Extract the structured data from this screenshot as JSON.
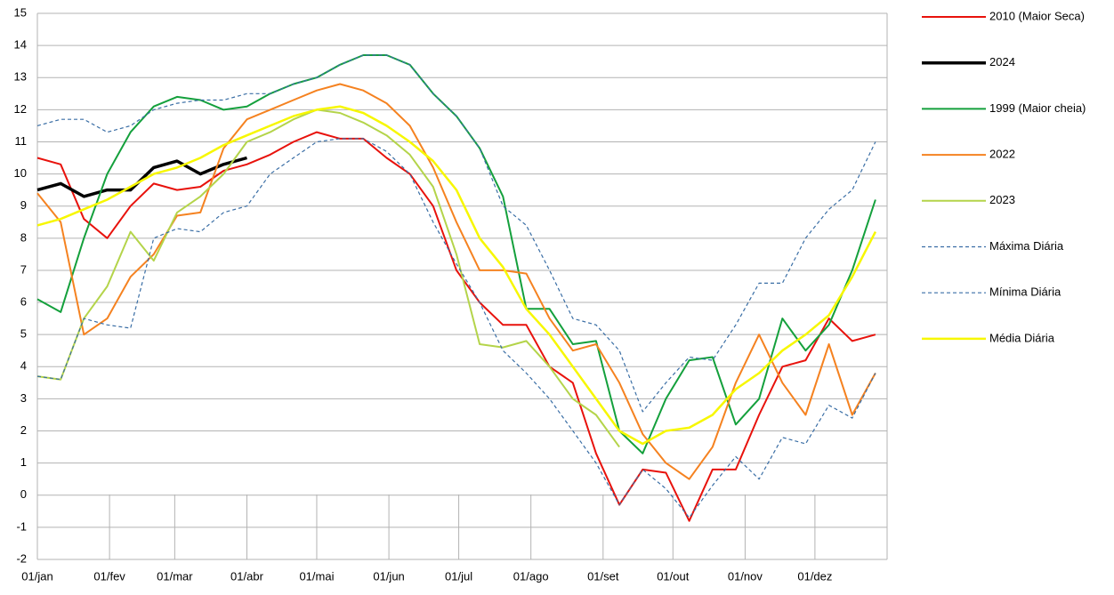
{
  "chart_data": {
    "type": "line",
    "x": [
      0,
      10,
      20,
      30,
      40,
      50,
      60,
      70,
      80,
      90,
      100,
      110,
      120,
      130,
      140,
      150,
      160,
      170,
      180,
      190,
      200,
      210,
      220,
      230,
      240,
      250,
      260,
      270,
      280,
      290,
      300,
      310,
      320,
      330,
      340,
      350,
      360
    ],
    "xlim": [
      0,
      365
    ],
    "xticks": [
      {
        "value": 0,
        "label": "01/jan"
      },
      {
        "value": 31,
        "label": "01/fev"
      },
      {
        "value": 59,
        "label": "01/mar"
      },
      {
        "value": 90,
        "label": "01/abr"
      },
      {
        "value": 120,
        "label": "01/mai"
      },
      {
        "value": 151,
        "label": "01/jun"
      },
      {
        "value": 181,
        "label": "01/jul"
      },
      {
        "value": 212,
        "label": "01/ago"
      },
      {
        "value": 243,
        "label": "01/set"
      },
      {
        "value": 273,
        "label": "01/out"
      },
      {
        "value": 304,
        "label": "01/nov"
      },
      {
        "value": 334,
        "label": "01/dez"
      }
    ],
    "ylim": [
      -2,
      15
    ],
    "yticks": [
      -2,
      -1,
      0,
      1,
      2,
      3,
      4,
      5,
      6,
      7,
      8,
      9,
      10,
      11,
      12,
      13,
      14,
      15
    ],
    "grid": true,
    "legend": "right",
    "series": [
      {
        "name": "2010 (Maior Seca)",
        "color": "#e8120c",
        "line_width": 2,
        "dashed": false,
        "values": [
          10.5,
          10.3,
          8.6,
          8.0,
          9.0,
          9.7,
          9.5,
          9.6,
          10.1,
          10.3,
          10.6,
          11.0,
          11.3,
          11.1,
          11.1,
          10.5,
          10.0,
          9.0,
          7.0,
          6.0,
          5.3,
          5.3,
          4.0,
          3.5,
          1.3,
          -0.3,
          0.8,
          0.7,
          -0.8,
          0.8,
          0.8,
          2.5,
          4.0,
          4.2,
          5.5,
          4.8,
          5.0
        ]
      },
      {
        "name": "2024",
        "color": "#000000",
        "line_width": 3.5,
        "dashed": false,
        "values": [
          9.5,
          9.7,
          9.3,
          9.5,
          9.5,
          10.2,
          10.4,
          10.0,
          10.3,
          10.5,
          null,
          null,
          null,
          null,
          null,
          null,
          null,
          null,
          null,
          null,
          null,
          null,
          null,
          null,
          null,
          null,
          null,
          null,
          null,
          null,
          null,
          null,
          null,
          null,
          null,
          null,
          null
        ]
      },
      {
        "name": "1999 (Maior cheia)",
        "color": "#14a03c",
        "line_width": 2,
        "dashed": false,
        "values": [
          6.1,
          5.7,
          8.0,
          10.0,
          11.3,
          12.1,
          12.4,
          12.3,
          12.0,
          12.1,
          12.5,
          12.8,
          13.0,
          13.4,
          13.7,
          13.7,
          13.4,
          12.5,
          11.8,
          10.8,
          9.3,
          5.8,
          5.8,
          4.7,
          4.8,
          2.0,
          1.3,
          3.0,
          4.2,
          4.3,
          2.2,
          3.0,
          5.5,
          4.5,
          5.3,
          7.0,
          9.2
        ]
      },
      {
        "name": "2022",
        "color": "#f58220",
        "line_width": 2,
        "dashed": false,
        "values": [
          9.4,
          8.5,
          5.0,
          5.5,
          6.8,
          7.5,
          8.7,
          8.8,
          10.8,
          11.7,
          12.0,
          12.3,
          12.6,
          12.8,
          12.6,
          12.2,
          11.5,
          10.2,
          8.5,
          7.0,
          7.0,
          6.9,
          5.5,
          4.5,
          4.7,
          3.5,
          1.9,
          1.0,
          0.5,
          1.5,
          3.5,
          5.0,
          3.5,
          2.5,
          4.7,
          2.5,
          3.8
        ]
      },
      {
        "name": "2023",
        "color": "#b4d44a",
        "line_width": 2,
        "dashed": false,
        "values": [
          3.7,
          3.6,
          5.5,
          6.5,
          8.2,
          7.3,
          8.8,
          9.3,
          10.0,
          11.0,
          11.3,
          11.7,
          12.0,
          11.9,
          11.6,
          11.2,
          10.6,
          9.6,
          7.5,
          4.7,
          4.6,
          4.8,
          4.0,
          3.0,
          2.5,
          1.5,
          null,
          null,
          null,
          null,
          null,
          null,
          null,
          null,
          null,
          null,
          null
        ]
      },
      {
        "name": "Máxima Diária",
        "color": "#3a6ea5",
        "line_width": 1.2,
        "dashed": true,
        "values": [
          11.5,
          11.7,
          11.7,
          11.3,
          11.5,
          12.0,
          12.2,
          12.3,
          12.3,
          12.5,
          12.5,
          12.8,
          13.0,
          13.4,
          13.7,
          13.7,
          13.4,
          12.5,
          11.8,
          10.8,
          9.0,
          8.4,
          7.0,
          5.5,
          5.3,
          4.5,
          2.6,
          3.5,
          4.3,
          4.2,
          5.3,
          6.6,
          6.6,
          8.0,
          8.9,
          9.5,
          11.0
        ]
      },
      {
        "name": "Mínima Diária",
        "color": "#3a6ea5",
        "line_width": 1.2,
        "dashed": true,
        "values": [
          3.7,
          3.6,
          5.5,
          5.3,
          5.2,
          8.0,
          8.3,
          8.2,
          8.8,
          9.0,
          10.0,
          10.5,
          11.0,
          11.1,
          11.1,
          10.7,
          10.0,
          8.5,
          7.2,
          6.0,
          4.5,
          3.8,
          3.0,
          2.0,
          1.0,
          -0.3,
          0.8,
          0.2,
          -0.7,
          0.3,
          1.2,
          0.5,
          1.8,
          1.6,
          2.8,
          2.4,
          3.8
        ]
      },
      {
        "name": "Média Diária",
        "color": "#f7f700",
        "line_width": 2.5,
        "dashed": false,
        "values": [
          8.4,
          8.6,
          8.9,
          9.2,
          9.6,
          10.0,
          10.2,
          10.5,
          10.9,
          11.2,
          11.5,
          11.8,
          12.0,
          12.1,
          11.9,
          11.5,
          11.0,
          10.4,
          9.5,
          8.0,
          7.1,
          5.8,
          5.0,
          4.0,
          3.0,
          2.0,
          1.6,
          2.0,
          2.1,
          2.5,
          3.3,
          3.8,
          4.5,
          5.0,
          5.6,
          6.8,
          8.2
        ]
      }
    ]
  }
}
